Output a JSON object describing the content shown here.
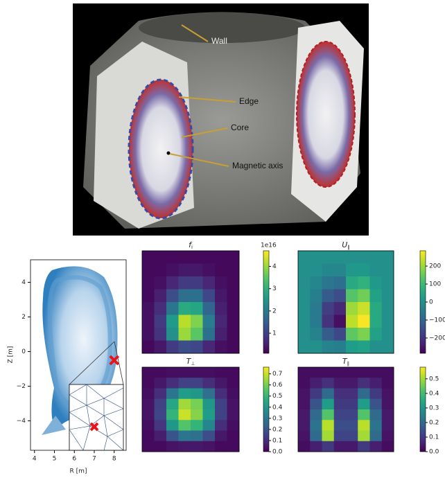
{
  "render": {
    "labels": [
      "Wall",
      "Edge",
      "Core",
      "Magnetic axis"
    ]
  },
  "mesh_plot": {
    "xlabel": "R [m]",
    "ylabel": "Z [m]",
    "xlim": [
      3.8,
      8.6
    ],
    "ylim": [
      -5.7,
      5.3
    ],
    "xticks": [
      4,
      5,
      6,
      7,
      8
    ],
    "yticks": [
      {
        "value": -4,
        "label": "−4"
      },
      {
        "value": -2,
        "label": "−2"
      },
      0,
      2,
      4
    ],
    "marker": {
      "x": 8.0,
      "y": -0.5,
      "color": "#e8141c"
    }
  },
  "panels": [
    {
      "symbol": "f",
      "sub": "i",
      "clim": [
        0.1,
        4.7
      ],
      "cticks": [
        1,
        2,
        3,
        4
      ],
      "offset_label": "1e16",
      "grid": [
        [
          0.2,
          0.2,
          0.2,
          0.2,
          0.2,
          0.2,
          0.2,
          0.2
        ],
        [
          0.2,
          0.2,
          0.3,
          0.4,
          0.4,
          0.3,
          0.2,
          0.2
        ],
        [
          0.2,
          0.3,
          0.6,
          0.9,
          0.9,
          0.6,
          0.3,
          0.2
        ],
        [
          0.2,
          0.5,
          1.2,
          1.8,
          1.8,
          1.1,
          0.4,
          0.2
        ],
        [
          0.3,
          0.7,
          1.9,
          2.9,
          2.8,
          1.6,
          0.5,
          0.2
        ],
        [
          0.3,
          0.9,
          2.6,
          4.2,
          3.8,
          2.0,
          0.6,
          0.2
        ],
        [
          0.3,
          0.8,
          2.4,
          4.0,
          3.5,
          1.8,
          0.5,
          0.2
        ],
        [
          0.2,
          0.4,
          0.9,
          1.2,
          1.1,
          0.6,
          0.3,
          0.2
        ]
      ]
    },
    {
      "symbol": "U",
      "sub": "∥",
      "clim": [
        -285,
        285
      ],
      "cticks": [
        {
          "value": -200,
          "label": "−200"
        },
        {
          "value": -100,
          "label": "−100"
        },
        0,
        100,
        200
      ],
      "grid": [
        [
          0,
          0,
          0,
          0,
          0,
          0,
          0,
          0
        ],
        [
          0,
          0,
          -20,
          -20,
          20,
          20,
          0,
          0
        ],
        [
          0,
          -20,
          -60,
          -80,
          60,
          80,
          20,
          0
        ],
        [
          0,
          -40,
          -120,
          -150,
          130,
          160,
          40,
          0
        ],
        [
          0,
          -50,
          -180,
          -220,
          200,
          240,
          60,
          0
        ],
        [
          0,
          -50,
          -200,
          -260,
          230,
          280,
          60,
          0
        ],
        [
          0,
          -30,
          -120,
          -160,
          140,
          170,
          40,
          0
        ],
        [
          0,
          0,
          -30,
          -40,
          30,
          40,
          0,
          0
        ]
      ]
    },
    {
      "symbol": "T",
      "sub": "⊥",
      "clim": [
        0,
        0.76
      ],
      "cticks": [
        {
          "value": 0,
          "label": "0.0"
        },
        0.1,
        0.2,
        0.3,
        0.4,
        0.5,
        0.6,
        0.7
      ],
      "grid": [
        [
          0.02,
          0.02,
          0.03,
          0.03,
          0.03,
          0.03,
          0.02,
          0.02
        ],
        [
          0.02,
          0.05,
          0.1,
          0.15,
          0.15,
          0.1,
          0.05,
          0.02
        ],
        [
          0.03,
          0.1,
          0.3,
          0.42,
          0.4,
          0.28,
          0.1,
          0.03
        ],
        [
          0.04,
          0.15,
          0.45,
          0.65,
          0.6,
          0.4,
          0.15,
          0.04
        ],
        [
          0.04,
          0.16,
          0.5,
          0.7,
          0.62,
          0.42,
          0.15,
          0.04
        ],
        [
          0.03,
          0.12,
          0.4,
          0.55,
          0.5,
          0.35,
          0.1,
          0.03
        ],
        [
          0.02,
          0.06,
          0.2,
          0.3,
          0.28,
          0.18,
          0.05,
          0.02
        ],
        [
          0.02,
          0.02,
          0.04,
          0.05,
          0.05,
          0.04,
          0.02,
          0.02
        ]
      ]
    },
    {
      "symbol": "T",
      "sub": "∥",
      "clim": [
        0,
        0.58
      ],
      "cticks": [
        {
          "value": 0,
          "label": "0.0"
        },
        0.1,
        0.2,
        0.3,
        0.4,
        0.5
      ],
      "grid": [
        [
          0.02,
          0.02,
          0.02,
          0.02,
          0.02,
          0.02,
          0.02,
          0.02
        ],
        [
          0.02,
          0.05,
          0.08,
          0.04,
          0.04,
          0.08,
          0.05,
          0.02
        ],
        [
          0.03,
          0.1,
          0.2,
          0.08,
          0.08,
          0.2,
          0.1,
          0.03
        ],
        [
          0.03,
          0.15,
          0.32,
          0.1,
          0.1,
          0.32,
          0.15,
          0.03
        ],
        [
          0.04,
          0.2,
          0.42,
          0.12,
          0.12,
          0.42,
          0.2,
          0.04
        ],
        [
          0.04,
          0.22,
          0.52,
          0.14,
          0.14,
          0.52,
          0.22,
          0.04
        ],
        [
          0.03,
          0.2,
          0.5,
          0.12,
          0.12,
          0.5,
          0.2,
          0.03
        ],
        [
          0.02,
          0.05,
          0.1,
          0.04,
          0.04,
          0.1,
          0.05,
          0.02
        ]
      ]
    }
  ]
}
